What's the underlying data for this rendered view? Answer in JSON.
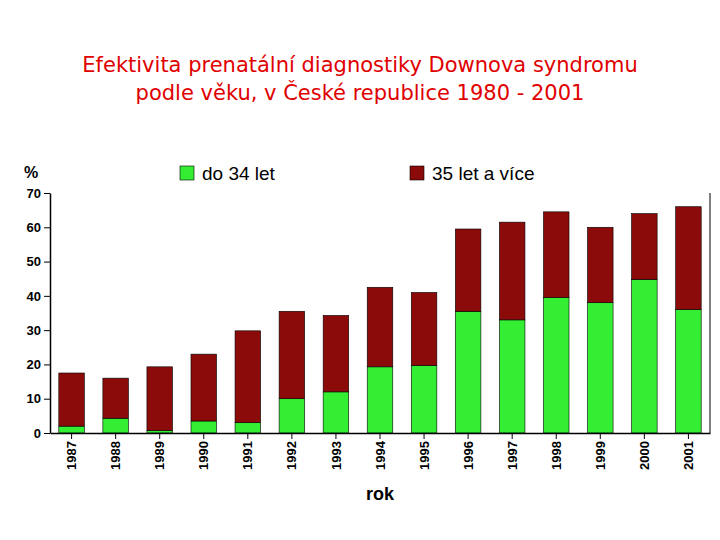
{
  "chart_data": {
    "type": "bar",
    "title": "Efektivita prenatální diagnostiky Downova syndromu\npodle věku, v České republice 1980 - 2001",
    "y_label": "%",
    "x_label": "rok",
    "categories": [
      "1987",
      "1988",
      "1989",
      "1990",
      "1991",
      "1992",
      "1993",
      "1994",
      "1995",
      "1996",
      "1997",
      "1998",
      "1999",
      "2000",
      "2001"
    ],
    "series": [
      {
        "name": "do 34 let",
        "color": "#33ee33",
        "values": [
          2,
          4.3,
          0.7,
          3.5,
          3,
          10,
          12,
          19.3,
          19.7,
          35.5,
          33,
          39.5,
          38,
          44.8,
          36
        ]
      },
      {
        "name": "35 let a více",
        "color": "#8b0a0a",
        "values": [
          15.5,
          11.7,
          18.6,
          19.5,
          26.8,
          25.5,
          22.3,
          23.2,
          21.3,
          24,
          28.5,
          25,
          22,
          19.2,
          30
        ]
      }
    ],
    "ylim": [
      0,
      70
    ],
    "yticks": [
      0,
      10,
      20,
      30,
      40,
      50,
      60,
      70
    ],
    "stacked": true,
    "grid": false,
    "legend": "top"
  }
}
